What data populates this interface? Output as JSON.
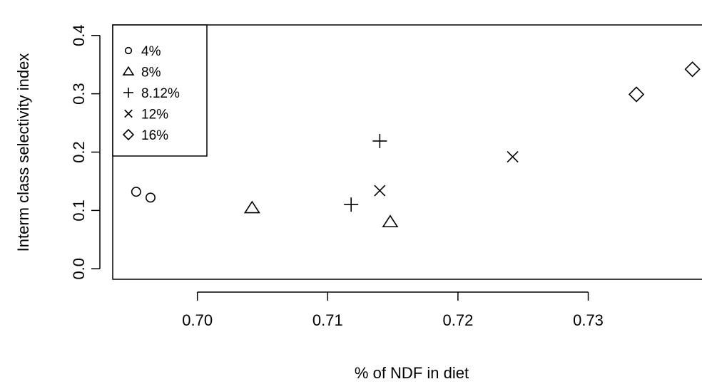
{
  "chart_data": {
    "type": "scatter",
    "title": "",
    "xlabel": "% of NDF in diet",
    "ylabel": "Interm class selectivity index",
    "xlim": [
      0.6935,
      0.7395
    ],
    "ylim": [
      -0.018,
      0.418
    ],
    "x_ticks": [
      0.7,
      0.71,
      0.72,
      0.73
    ],
    "x_tick_labels": [
      "0.70",
      "0.71",
      "0.72",
      "0.73"
    ],
    "y_ticks": [
      0.0,
      0.1,
      0.2,
      0.3,
      0.4
    ],
    "y_tick_labels": [
      "0.0",
      "0.1",
      "0.2",
      "0.3",
      "0.4"
    ],
    "grid": false,
    "legend_position": "top-left",
    "series": [
      {
        "name": "4%",
        "marker": "circle",
        "x": [
          0.6953,
          0.6964
        ],
        "y": [
          0.132,
          0.122
        ]
      },
      {
        "name": "8%",
        "marker": "triangle",
        "x": [
          0.7042,
          0.7148
        ],
        "y": [
          0.104,
          0.08
        ]
      },
      {
        "name": "8.12%",
        "marker": "plus",
        "x": [
          0.7118,
          0.714
        ],
        "y": [
          0.11,
          0.219
        ]
      },
      {
        "name": "12%",
        "marker": "cross",
        "x": [
          0.714,
          0.7242
        ],
        "y": [
          0.134,
          0.192
        ]
      },
      {
        "name": "16%",
        "marker": "diamond",
        "x": [
          0.7337,
          0.738
        ],
        "y": [
          0.299,
          0.342
        ]
      }
    ]
  }
}
